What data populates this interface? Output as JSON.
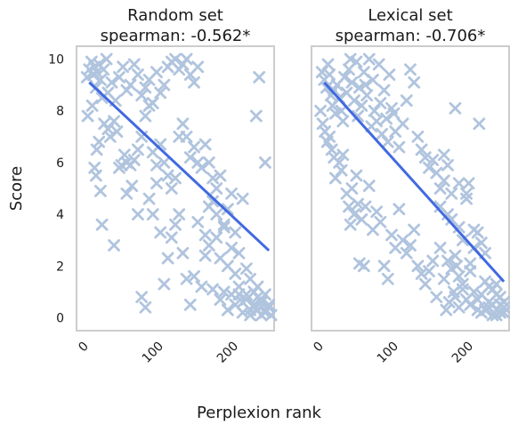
{
  "chart_data": {
    "type": "scatter",
    "shared": {
      "xlabel": "Perplexion rank",
      "ylabel": "Score",
      "xticks": [
        "0",
        "100",
        "200"
      ],
      "yticks": [
        "0",
        "2",
        "4",
        "6",
        "8",
        "10"
      ],
      "xlim": [
        -12,
        252
      ],
      "ylim": [
        -0.5,
        10.5
      ],
      "grid": false,
      "marker": "x",
      "marker_color": "#b0c4de",
      "fit_color": "#4169e1"
    },
    "panels": [
      {
        "title_line1": "Random set",
        "title_line2": "spearman: -0.562*",
        "fit_line": {
          "x": [
            5,
            245
          ],
          "y": [
            9.1,
            2.6
          ]
        },
        "points": [
          [
            2,
            9.3
          ],
          [
            5,
            9.6
          ],
          [
            8,
            9.9
          ],
          [
            10,
            9.4
          ],
          [
            12,
            9.7
          ],
          [
            15,
            9.5
          ],
          [
            18,
            9.8
          ],
          [
            20,
            9.2
          ],
          [
            24,
            9.6
          ],
          [
            28,
            10.0
          ],
          [
            3,
            7.8
          ],
          [
            9,
            8.2
          ],
          [
            14,
            8.9
          ],
          [
            22,
            8.5
          ],
          [
            30,
            8.7
          ],
          [
            35,
            9.1
          ],
          [
            40,
            8.4
          ],
          [
            45,
            9.3
          ],
          [
            50,
            9.7
          ],
          [
            55,
            8.8
          ],
          [
            60,
            9.0
          ],
          [
            65,
            9.8
          ],
          [
            70,
            9.4
          ],
          [
            75,
            8.6
          ],
          [
            80,
            8.9
          ],
          [
            85,
            9.2
          ],
          [
            90,
            8.3
          ],
          [
            95,
            9.5
          ],
          [
            100,
            8.7
          ],
          [
            105,
            9.0
          ],
          [
            110,
            9.7
          ],
          [
            115,
            9.9
          ],
          [
            120,
            10.0
          ],
          [
            125,
            9.6
          ],
          [
            130,
            9.8
          ],
          [
            135,
            10.0
          ],
          [
            140,
            9.4
          ],
          [
            145,
            9.1
          ],
          [
            150,
            9.7
          ],
          [
            12,
            5.8
          ],
          [
            14,
            5.5
          ],
          [
            15,
            6.5
          ],
          [
            18,
            6.8
          ],
          [
            20,
            4.9
          ],
          [
            22,
            3.6
          ],
          [
            25,
            7.5
          ],
          [
            30,
            7.3
          ],
          [
            33,
            7.0
          ],
          [
            38,
            7.6
          ],
          [
            42,
            7.2
          ],
          [
            45,
            5.8
          ],
          [
            48,
            5.9
          ],
          [
            52,
            6.3
          ],
          [
            55,
            6.0
          ],
          [
            60,
            5.9
          ],
          [
            65,
            6.1
          ],
          [
            70,
            6.5
          ],
          [
            75,
            7.0
          ],
          [
            80,
            7.8
          ],
          [
            85,
            8.2
          ],
          [
            90,
            6.4
          ],
          [
            95,
            5.9
          ],
          [
            100,
            6.7
          ],
          [
            105,
            6.0
          ],
          [
            110,
            5.5
          ],
          [
            115,
            5.0
          ],
          [
            120,
            5.4
          ],
          [
            125,
            7.0
          ],
          [
            130,
            7.5
          ],
          [
            135,
            7.0
          ],
          [
            140,
            6.2
          ],
          [
            145,
            6.6
          ],
          [
            150,
            6.0
          ],
          [
            155,
            5.8
          ],
          [
            160,
            6.7
          ],
          [
            165,
            6.0
          ],
          [
            170,
            5.4
          ],
          [
            38,
            2.8
          ],
          [
            55,
            4.8
          ],
          [
            62,
            5.1
          ],
          [
            70,
            4.0
          ],
          [
            75,
            0.8
          ],
          [
            80,
            0.4
          ],
          [
            85,
            4.6
          ],
          [
            90,
            4.0
          ],
          [
            95,
            5.2
          ],
          [
            100,
            3.3
          ],
          [
            105,
            1.3
          ],
          [
            110,
            2.3
          ],
          [
            115,
            3.1
          ],
          [
            120,
            3.6
          ],
          [
            125,
            4.0
          ],
          [
            130,
            2.5
          ],
          [
            135,
            1.5
          ],
          [
            140,
            0.5
          ],
          [
            145,
            1.6
          ],
          [
            150,
            3.7
          ],
          [
            155,
            1.2
          ],
          [
            160,
            2.4
          ],
          [
            165,
            4.3
          ],
          [
            170,
            1.1
          ],
          [
            175,
            3.1
          ],
          [
            180,
            2.3
          ],
          [
            185,
            3.6
          ],
          [
            190,
            4.2
          ],
          [
            195,
            4.8
          ],
          [
            200,
            3.3
          ],
          [
            205,
            2.5
          ],
          [
            210,
            4.6
          ],
          [
            215,
            0.7
          ],
          [
            220,
            1.5
          ],
          [
            225,
            0.5
          ],
          [
            230,
            0.3
          ],
          [
            235,
            0.7
          ],
          [
            240,
            0.2
          ],
          [
            245,
            0.5
          ],
          [
            160,
            3.2
          ],
          [
            165,
            2.8
          ],
          [
            170,
            4.5
          ],
          [
            175,
            5.0
          ],
          [
            180,
            5.5
          ],
          [
            185,
            3.5
          ],
          [
            190,
            2.0
          ],
          [
            195,
            2.7
          ],
          [
            200,
            1.7
          ],
          [
            205,
            0.9
          ],
          [
            210,
            0.2
          ],
          [
            215,
            1.9
          ],
          [
            220,
            0.3
          ],
          [
            225,
            1.0
          ],
          [
            230,
            0.8
          ],
          [
            235,
            0.1
          ],
          [
            240,
            0.9
          ],
          [
            245,
            0.4
          ],
          [
            200,
            0.5
          ],
          [
            205,
            1.2
          ],
          [
            210,
            0.6
          ],
          [
            215,
            0.9
          ],
          [
            220,
            0.1
          ],
          [
            225,
            0.4
          ],
          [
            230,
            1.2
          ],
          [
            235,
            0.6
          ],
          [
            240,
            0.3
          ],
          [
            248,
            0.1
          ],
          [
            228,
            7.8
          ],
          [
            232,
            9.3
          ],
          [
            240,
            6.0
          ],
          [
            175,
            4.0
          ],
          [
            180,
            0.7
          ],
          [
            185,
            1.0
          ],
          [
            190,
            0.3
          ],
          [
            195,
            0.9
          ]
        ]
      },
      {
        "title_line1": "Lexical set",
        "title_line2": "spearman: -0.706*",
        "fit_line": {
          "x": [
            5,
            245
          ],
          "y": [
            9.1,
            1.4
          ]
        },
        "points": [
          [
            2,
            9.5
          ],
          [
            5,
            9.2
          ],
          [
            8,
            8.9
          ],
          [
            10,
            9.8
          ],
          [
            12,
            9.4
          ],
          [
            14,
            8.6
          ],
          [
            16,
            8.2
          ],
          [
            18,
            8.8
          ],
          [
            20,
            7.9
          ],
          [
            22,
            9.0
          ],
          [
            25,
            8.5
          ],
          [
            28,
            8.0
          ],
          [
            30,
            7.6
          ],
          [
            32,
            9.3
          ],
          [
            35,
            8.7
          ],
          [
            38,
            9.6
          ],
          [
            40,
            10.0
          ],
          [
            42,
            9.1
          ],
          [
            45,
            8.4
          ],
          [
            48,
            9.9
          ],
          [
            50,
            7.8
          ],
          [
            52,
            8.9
          ],
          [
            55,
            8.2
          ],
          [
            58,
            9.5
          ],
          [
            60,
            9.0
          ],
          [
            62,
            8.6
          ],
          [
            65,
            10.0
          ],
          [
            68,
            7.4
          ],
          [
            70,
            9.2
          ],
          [
            72,
            8.0
          ],
          [
            75,
            7.6
          ],
          [
            78,
            9.8
          ],
          [
            80,
            8.3
          ],
          [
            82,
            7.1
          ],
          [
            85,
            8.8
          ],
          [
            88,
            7.7
          ],
          [
            90,
            6.8
          ],
          [
            92,
            9.4
          ],
          [
            95,
            8.1
          ],
          [
            98,
            7.9
          ],
          [
            100,
            7.2
          ],
          [
            105,
            6.6
          ],
          [
            110,
            7.5
          ],
          [
            115,
            8.4
          ],
          [
            120,
            9.6
          ],
          [
            125,
            9.1
          ],
          [
            130,
            7.0
          ],
          [
            135,
            6.5
          ],
          [
            140,
            6.2
          ],
          [
            145,
            5.8
          ],
          [
            150,
            6.1
          ],
          [
            155,
            5.6
          ],
          [
            160,
            5.0
          ],
          [
            165,
            6.3
          ],
          [
            170,
            5.9
          ],
          [
            175,
            4.8
          ],
          [
            180,
            8.1
          ],
          [
            185,
            5.2
          ],
          [
            0,
            8.0
          ],
          [
            3,
            7.5
          ],
          [
            6,
            7.2
          ],
          [
            9,
            6.8
          ],
          [
            12,
            7.0
          ],
          [
            15,
            6.5
          ],
          [
            18,
            6.2
          ],
          [
            20,
            5.4
          ],
          [
            25,
            6.0
          ],
          [
            28,
            5.7
          ],
          [
            30,
            6.3
          ],
          [
            35,
            4.8
          ],
          [
            38,
            4.3
          ],
          [
            40,
            3.6
          ],
          [
            42,
            5.0
          ],
          [
            45,
            4.0
          ],
          [
            48,
            5.5
          ],
          [
            50,
            4.4
          ],
          [
            52,
            2.1
          ],
          [
            55,
            3.8
          ],
          [
            58,
            2.0
          ],
          [
            60,
            4.3
          ],
          [
            65,
            5.1
          ],
          [
            70,
            3.4
          ],
          [
            75,
            4.1
          ],
          [
            80,
            3.7
          ],
          [
            85,
            2.0
          ],
          [
            90,
            1.5
          ],
          [
            95,
            3.2
          ],
          [
            100,
            2.7
          ],
          [
            105,
            4.2
          ],
          [
            110,
            3.0
          ],
          [
            115,
            2.5
          ],
          [
            120,
            2.8
          ],
          [
            125,
            3.4
          ],
          [
            130,
            2.0
          ],
          [
            135,
            1.7
          ],
          [
            140,
            1.3
          ],
          [
            145,
            1.8
          ],
          [
            150,
            2.2
          ],
          [
            155,
            0.8
          ],
          [
            160,
            2.7
          ],
          [
            165,
            1.5
          ],
          [
            170,
            2.2
          ],
          [
            175,
            1.9
          ],
          [
            180,
            0.8
          ],
          [
            185,
            0.4
          ],
          [
            190,
            1.3
          ],
          [
            195,
            0.7
          ],
          [
            200,
            1.8
          ],
          [
            205,
            2.7
          ],
          [
            210,
            3.3
          ],
          [
            215,
            2.9
          ],
          [
            220,
            0.3
          ],
          [
            225,
            1.2
          ],
          [
            230,
            0.5
          ],
          [
            235,
            0.9
          ],
          [
            240,
            0.2
          ],
          [
            245,
            0.6
          ],
          [
            160,
            4.3
          ],
          [
            165,
            5.3
          ],
          [
            170,
            4.0
          ],
          [
            175,
            3.8
          ],
          [
            180,
            2.4
          ],
          [
            185,
            1.6
          ],
          [
            190,
            1.1
          ],
          [
            195,
            4.6
          ],
          [
            200,
            2.1
          ],
          [
            205,
            3.4
          ],
          [
            210,
            0.3
          ],
          [
            215,
            0.9
          ],
          [
            220,
            2.5
          ],
          [
            225,
            0.4
          ],
          [
            230,
            1.1
          ],
          [
            235,
            0.1
          ],
          [
            240,
            0.8
          ],
          [
            245,
            0.4
          ],
          [
            200,
            0.5
          ],
          [
            205,
            1.0
          ],
          [
            210,
            0.7
          ],
          [
            215,
            0.2
          ],
          [
            220,
            1.4
          ],
          [
            225,
            0.6
          ],
          [
            230,
            0.1
          ],
          [
            235,
            1.3
          ],
          [
            240,
            0.5
          ],
          [
            245,
            0.2
          ],
          [
            212,
            7.5
          ],
          [
            195,
            4.8
          ],
          [
            198,
            5.2
          ],
          [
            190,
            3.0
          ],
          [
            185,
            3.5
          ],
          [
            182,
            2.0
          ],
          [
            178,
            1.0
          ],
          [
            172,
            0.6
          ],
          [
            168,
            0.3
          ]
        ]
      }
    ]
  }
}
